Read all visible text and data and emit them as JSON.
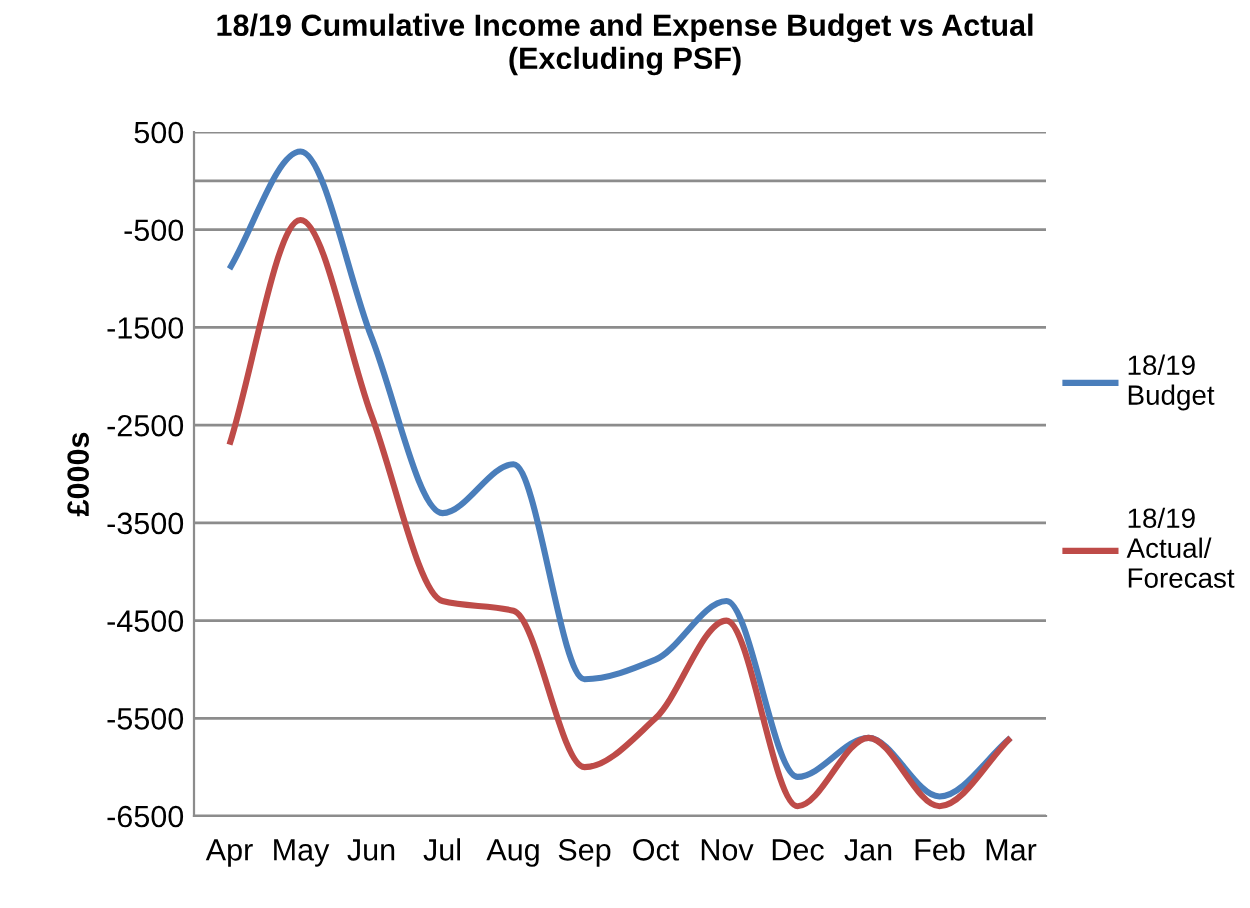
{
  "chart_data": {
    "type": "line",
    "title": "18/19 Cumulative Income and Expense Budget vs Actual\n(Excluding PSF)",
    "ylabel": "£000s",
    "categories": [
      "Apr",
      "May",
      "Jun",
      "Jul",
      "Aug",
      "Sep",
      "Oct",
      "Nov",
      "Dec",
      "Jan",
      "Feb",
      "Mar"
    ],
    "series": [
      {
        "name": "18/19 Budget",
        "color": "#4a7ebb",
        "values": [
          -900,
          300,
          -1600,
          -3400,
          -2900,
          -5100,
          -4900,
          -4300,
          -6100,
          -5700,
          -6300,
          -5700
        ]
      },
      {
        "name": "18/19 Actual/ Forecast",
        "color": "#be4b48",
        "values": [
          -2700,
          -400,
          -2400,
          -4300,
          -4400,
          -6000,
          -5500,
          -4500,
          -6400,
          -5700,
          -6400,
          -5700
        ]
      }
    ],
    "ylim": [
      -6500,
      500
    ],
    "yticks": [
      500,
      -500,
      -1500,
      -2500,
      -3500,
      -4500,
      -5500,
      -6500
    ],
    "ref_lines": [
      {
        "axis": "y",
        "value": 0,
        "color": "#8c8c8c"
      }
    ],
    "grid": "y",
    "legend": "right",
    "marker": "none",
    "line_style": "solid"
  }
}
